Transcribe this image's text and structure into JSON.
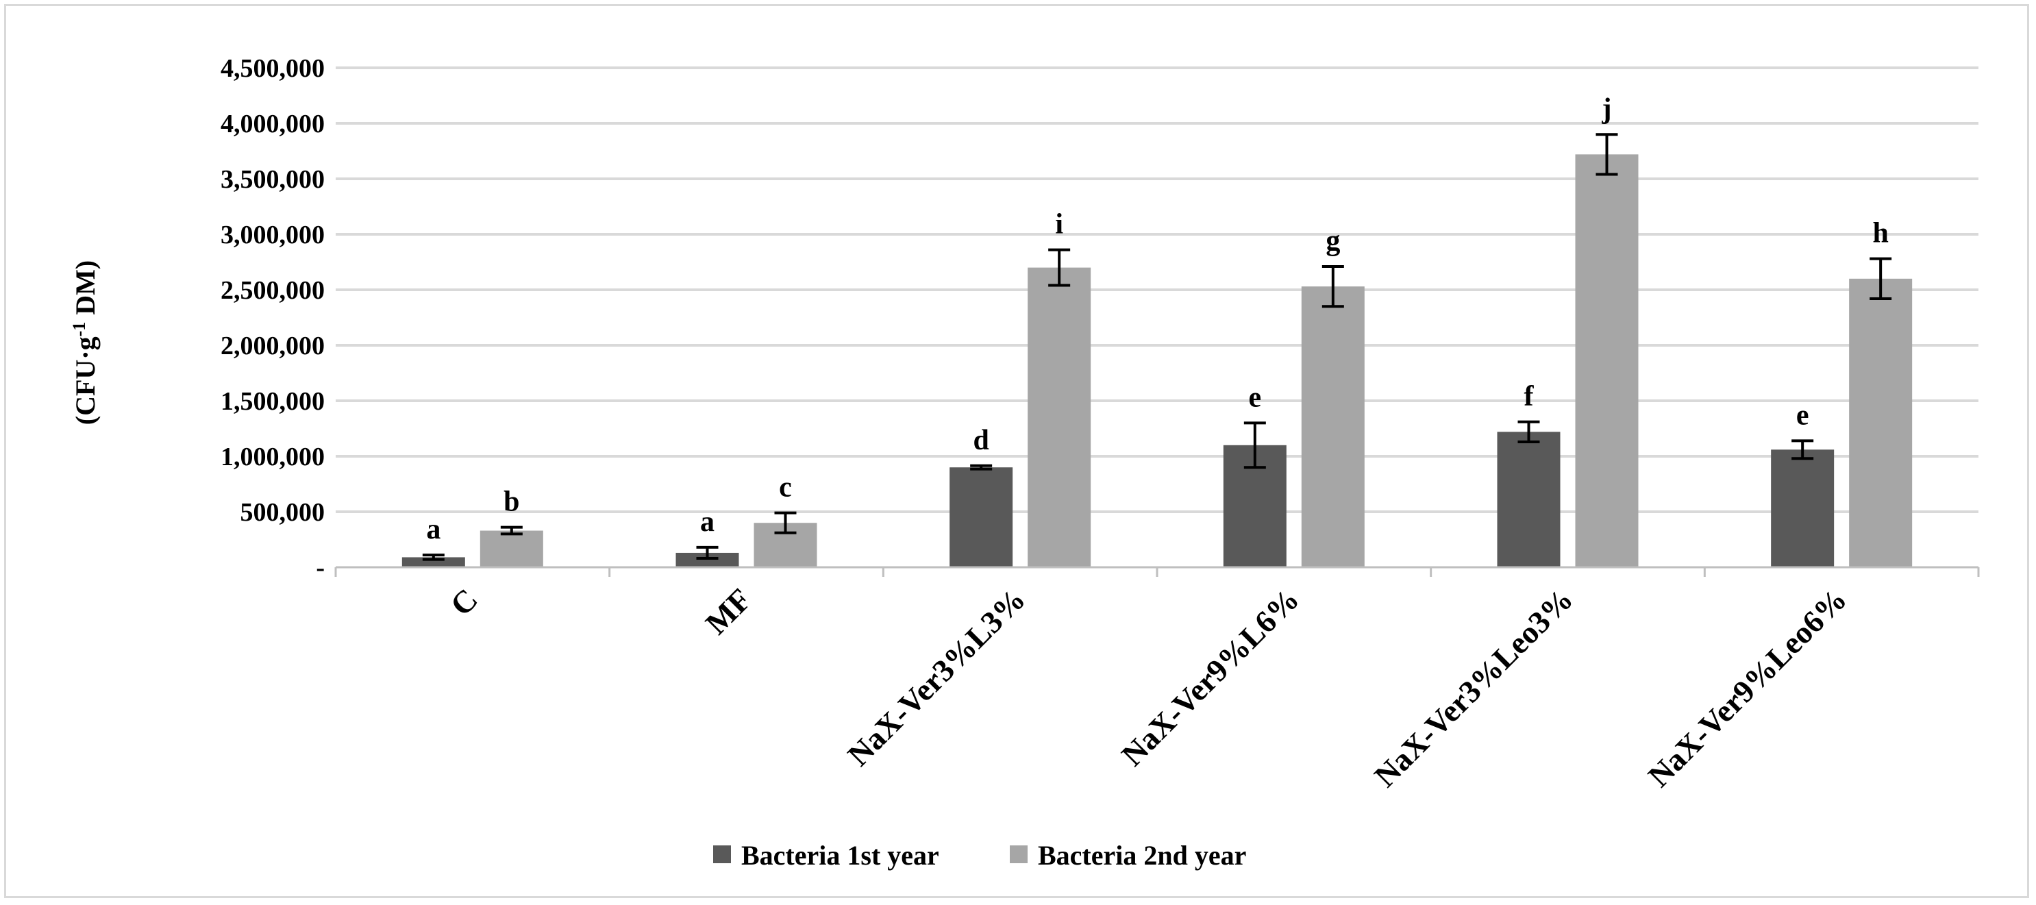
{
  "chart_data": {
    "type": "bar",
    "ylabel_main": "(CFU·g",
    "ylabel_sup": "-1",
    "ylabel_tail": " DM)",
    "ylim": [
      0,
      4500000
    ],
    "y_ticks": [
      {
        "value": 0,
        "label": "-"
      },
      {
        "value": 500000,
        "label": "500,000"
      },
      {
        "value": 1000000,
        "label": "1,000,000"
      },
      {
        "value": 1500000,
        "label": "1,500,000"
      },
      {
        "value": 2000000,
        "label": "2,000,000"
      },
      {
        "value": 2500000,
        "label": "2,500,000"
      },
      {
        "value": 3000000,
        "label": "3,000,000"
      },
      {
        "value": 3500000,
        "label": "3,500,000"
      },
      {
        "value": 4000000,
        "label": "4,000,000"
      },
      {
        "value": 4500000,
        "label": "4,500,000"
      }
    ],
    "grid": true,
    "legend_position": "bottom-center",
    "categories": [
      "C",
      "MF",
      "NaX-Ver3%L3%",
      "NaX-Ver9%L6%",
      "NaX-Ver3%Leo3%",
      "NaX-Ver9%Leo6%"
    ],
    "series": [
      {
        "name": "Bacteria 1st year",
        "color": "#595959",
        "values": [
          90000,
          130000,
          900000,
          1100000,
          1220000,
          1060000
        ],
        "errors": [
          20000,
          50000,
          15000,
          200000,
          90000,
          80000
        ],
        "letters": [
          "a",
          "a",
          "d",
          "e",
          "f",
          "e"
        ]
      },
      {
        "name": "Bacteria 2nd year",
        "color": "#a6a6a6",
        "values": [
          330000,
          400000,
          2700000,
          2530000,
          3720000,
          2600000
        ],
        "errors": [
          30000,
          90000,
          160000,
          180000,
          180000,
          180000
        ],
        "letters": [
          "b",
          "c",
          "i",
          "g",
          "j",
          "h"
        ]
      }
    ]
  }
}
